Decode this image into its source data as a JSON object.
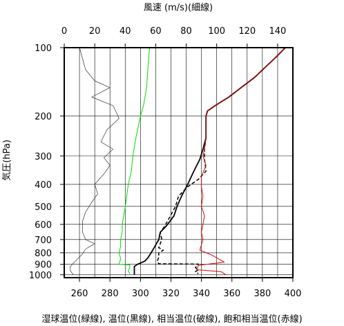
{
  "chart_data": {
    "type": "line",
    "title_top": "風速 (m/s)(細線)",
    "ylabel": "気圧(hPa)",
    "caption": "湿球温位(緑線), 温位(黒線), 相当温位(破線), 飽和相当温位(赤線)",
    "x_temp": {
      "range": [
        250,
        400
      ],
      "ticks": [
        "260",
        "280",
        "300",
        "320",
        "340",
        "360",
        "380",
        "400"
      ],
      "tick_values": [
        260,
        280,
        300,
        320,
        340,
        360,
        380,
        400
      ]
    },
    "x_wind": {
      "range": [
        0,
        150
      ],
      "ticks": [
        "0",
        "20",
        "40",
        "60",
        "80",
        "100",
        "120",
        "140"
      ],
      "tick_values": [
        0,
        20,
        40,
        60,
        80,
        100,
        120,
        140
      ]
    },
    "y_pressure": {
      "range": [
        1030,
        100
      ],
      "scale": "log",
      "reversed": true,
      "ticks": [
        "100",
        "200",
        "300",
        "400",
        "500",
        "600",
        "700",
        "800",
        "900",
        "1000"
      ],
      "tick_values": [
        100,
        200,
        300,
        400,
        500,
        600,
        700,
        800,
        900,
        1000
      ]
    },
    "grid": true,
    "colors": {
      "wetbulb": "#00dd00",
      "theta": "#000000",
      "theta_e": "#000000",
      "theta_es": "#dd0000",
      "wind": "#333333"
    },
    "series": [
      {
        "key": "wind",
        "points": [
          [
            10,
            100
          ],
          [
            14,
            125
          ],
          [
            20,
            140
          ],
          [
            30,
            150
          ],
          [
            18,
            165
          ],
          [
            32,
            180
          ],
          [
            36,
            205
          ],
          [
            28,
            230
          ],
          [
            24,
            260
          ],
          [
            32,
            280
          ],
          [
            26,
            305
          ],
          [
            30,
            330
          ],
          [
            26,
            360
          ],
          [
            20,
            400
          ],
          [
            22,
            440
          ],
          [
            18,
            480
          ],
          [
            14,
            530
          ],
          [
            12,
            580
          ],
          [
            12,
            650
          ],
          [
            14,
            700
          ],
          [
            20,
            730
          ],
          [
            14,
            770
          ],
          [
            12,
            810
          ],
          [
            8,
            860
          ],
          [
            4,
            920
          ],
          [
            4,
            960
          ],
          [
            6,
            1000
          ]
        ]
      },
      {
        "key": "wetbulb",
        "points": [
          [
            306,
            100
          ],
          [
            305,
            120
          ],
          [
            304,
            150
          ],
          [
            302,
            180
          ],
          [
            300,
            200
          ],
          [
            297,
            250
          ],
          [
            295,
            300
          ],
          [
            294,
            350
          ],
          [
            292,
            400
          ],
          [
            291,
            450
          ],
          [
            290,
            500
          ],
          [
            289,
            550
          ],
          [
            288,
            600
          ],
          [
            288,
            650
          ],
          [
            287,
            700
          ],
          [
            287,
            750
          ],
          [
            286,
            800
          ],
          [
            287,
            850
          ],
          [
            286,
            900
          ],
          [
            293,
            905
          ],
          [
            293,
            930
          ],
          [
            292,
            960
          ],
          [
            293,
            990
          ]
        ]
      },
      {
        "key": "theta",
        "points": [
          [
            395,
            100
          ],
          [
            389,
            110
          ],
          [
            383,
            120
          ],
          [
            375,
            135
          ],
          [
            366,
            150
          ],
          [
            358,
            165
          ],
          [
            349,
            180
          ],
          [
            344,
            190
          ],
          [
            343,
            200
          ],
          [
            343,
            250
          ],
          [
            341,
            280
          ],
          [
            339,
            310
          ],
          [
            335,
            350
          ],
          [
            331,
            400
          ],
          [
            327,
            450
          ],
          [
            324,
            500
          ],
          [
            322,
            550
          ],
          [
            317,
            610
          ],
          [
            313,
            650
          ],
          [
            312,
            700
          ],
          [
            309,
            760
          ],
          [
            307,
            800
          ],
          [
            305,
            840
          ],
          [
            303,
            870
          ],
          [
            298,
            900
          ],
          [
            296,
            920
          ],
          [
            296,
            960
          ],
          [
            296,
            1000
          ]
        ]
      },
      {
        "key": "theta_e",
        "points": [
          [
            395,
            100
          ],
          [
            389,
            110
          ],
          [
            383,
            120
          ],
          [
            375,
            135
          ],
          [
            366,
            150
          ],
          [
            358,
            165
          ],
          [
            349,
            180
          ],
          [
            344,
            190
          ],
          [
            343,
            200
          ],
          [
            343,
            250
          ],
          [
            342,
            280
          ],
          [
            342,
            310
          ],
          [
            343,
            350
          ],
          [
            338,
            380
          ],
          [
            331,
            410
          ],
          [
            325,
            450
          ],
          [
            323,
            500
          ],
          [
            319,
            560
          ],
          [
            316,
            610
          ],
          [
            313,
            650
          ],
          [
            314,
            700
          ],
          [
            312,
            760
          ],
          [
            315,
            780
          ],
          [
            312,
            800
          ],
          [
            312,
            840
          ],
          [
            311,
            870
          ],
          [
            312,
            895
          ],
          [
            338,
            898
          ],
          [
            336,
            930
          ],
          [
            338,
            950
          ],
          [
            336,
            970
          ],
          [
            338,
            990
          ]
        ]
      },
      {
        "key": "theta_es",
        "points": [
          [
            395,
            100
          ],
          [
            389,
            110
          ],
          [
            383,
            120
          ],
          [
            375,
            135
          ],
          [
            366,
            150
          ],
          [
            358,
            165
          ],
          [
            349,
            180
          ],
          [
            344,
            190
          ],
          [
            343,
            200
          ],
          [
            343,
            250
          ],
          [
            342,
            280
          ],
          [
            341,
            300
          ],
          [
            343,
            330
          ],
          [
            340,
            370
          ],
          [
            340,
            410
          ],
          [
            341,
            450
          ],
          [
            340,
            500
          ],
          [
            342,
            550
          ],
          [
            341,
            600
          ],
          [
            340,
            650
          ],
          [
            341,
            700
          ],
          [
            339,
            780
          ],
          [
            347,
            820
          ],
          [
            355,
            880
          ],
          [
            338,
            910
          ],
          [
            337,
            950
          ],
          [
            353,
            970
          ],
          [
            356,
            1000
          ]
        ]
      }
    ]
  }
}
